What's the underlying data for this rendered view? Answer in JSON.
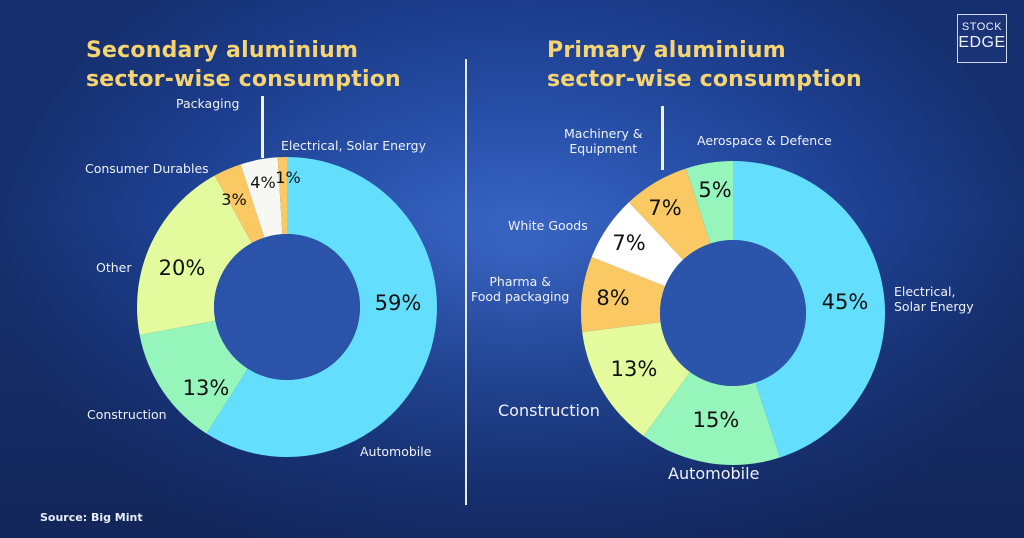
{
  "header": {
    "left_title_line1": "Secondary aluminium",
    "left_title_line2": "sector-wise consumption",
    "right_title_line1": "Primary aluminium",
    "right_title_line2": "sector-wise consumption"
  },
  "logo": {
    "line1": "STOCK",
    "line2": "EDGE"
  },
  "footer": {
    "source": "Source: Big Mint"
  },
  "colors": {
    "background": "#2a54ae",
    "title": "#f7d472",
    "blue": "#63dffd",
    "green": "#95f5ba",
    "lime": "#e3fb9d",
    "orange": "#fac964",
    "white": "#f7f8f3",
    "hole": "#2b55ab"
  },
  "chart_data": [
    {
      "type": "pie",
      "variant": "donut",
      "title": "Secondary aluminium sector-wise consumption",
      "start_angle": "12 o'clock",
      "direction": "clockwise",
      "categories": [
        "Automobile",
        "Construction",
        "Other",
        "Consumer Durables",
        "Packaging",
        "Electrical, Solar Energy"
      ],
      "values": [
        59,
        13,
        20,
        3,
        4,
        1
      ],
      "labels": [
        "59%",
        "13%",
        "20%",
        "3%",
        "4%",
        "1%"
      ],
      "colors": [
        "#63dffd",
        "#95f5ba",
        "#e3fb9d",
        "#fac964",
        "#f7f8f3",
        "#fac964"
      ],
      "unit": "%"
    },
    {
      "type": "pie",
      "variant": "donut",
      "title": "Primary aluminium sector-wise consumption",
      "start_angle": "12 o'clock",
      "direction": "clockwise",
      "categories": [
        "Electrical, Solar Energy",
        "Automobile",
        "Construction",
        "Pharma & Food packaging",
        "White Goods",
        "Machinery & Equipment",
        "Aerospace & Defence"
      ],
      "values": [
        45,
        15,
        13,
        8,
        7,
        7,
        5
      ],
      "labels": [
        "45%",
        "15%",
        "13%",
        "8%",
        "7%",
        "7%",
        "5%"
      ],
      "colors": [
        "#63dffd",
        "#95f5ba",
        "#e3fb9d",
        "#fac964",
        "#ffffff",
        "#fac964",
        "#95f5ba"
      ],
      "unit": "%"
    }
  ],
  "left_labels": {
    "packaging": "Packaging",
    "electrical": "Electrical, Solar Energy",
    "consumer_durables": "Consumer Durables",
    "other": "Other",
    "construction": "Construction",
    "automobile": "Automobile"
  },
  "right_labels": {
    "machinery_line1": "Machinery &",
    "machinery_line2": "Equipment",
    "aerospace": "Aerospace & Defence",
    "white_goods": "White Goods",
    "pharma_line1": "Pharma &",
    "pharma_line2": "Food packaging",
    "construction": "Construction",
    "automobile": "Automobile",
    "electrical_line1": "Electrical,",
    "electrical_line2": "Solar Energy"
  }
}
